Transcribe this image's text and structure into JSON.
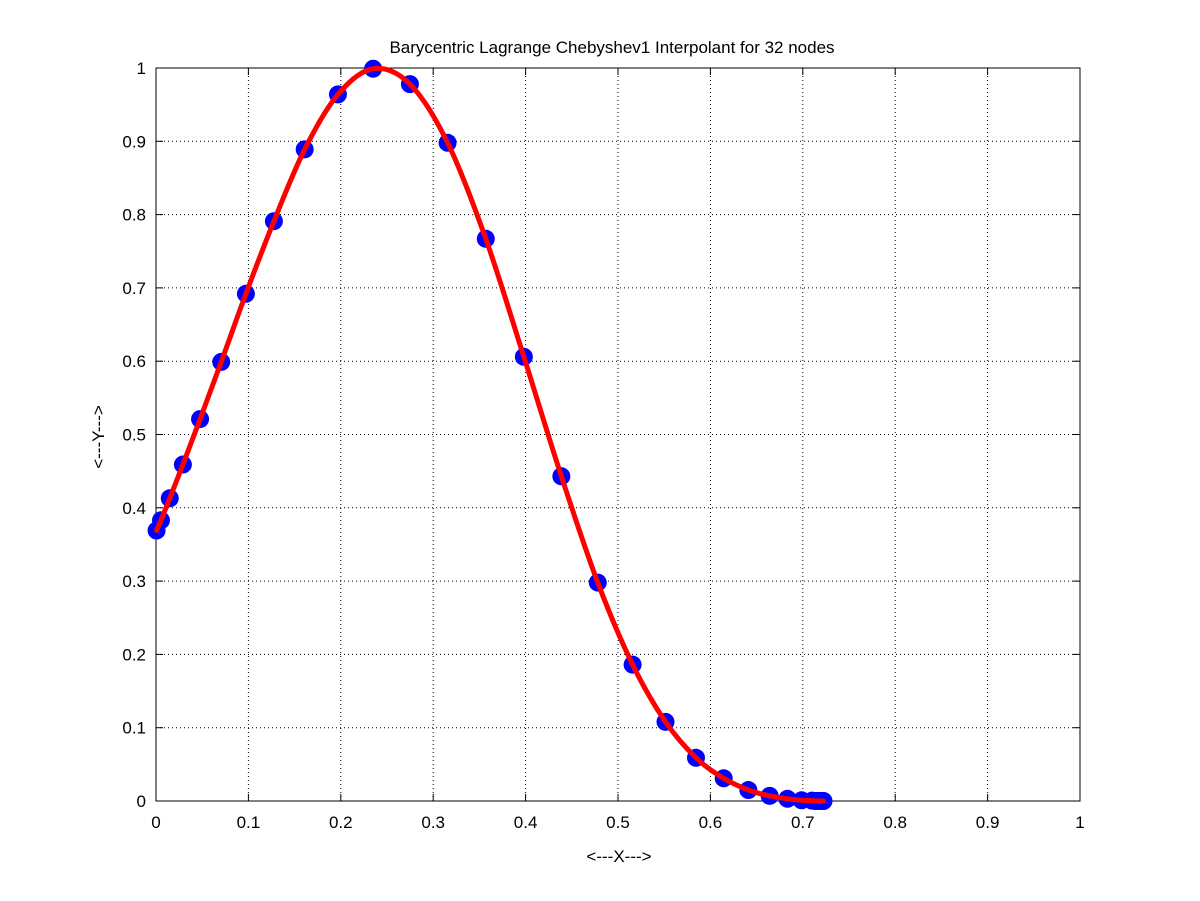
{
  "chart_data": {
    "type": "line",
    "title": "Barycentric Lagrange Chebyshev1 Interpolant for 32 nodes",
    "xlabel": "<---X--->",
    "ylabel": "<---Y--->",
    "xlim": [
      0,
      1
    ],
    "ylim": [
      0,
      1
    ],
    "xticks": [
      0,
      0.1,
      0.2,
      0.3,
      0.4,
      0.5,
      0.6,
      0.7,
      0.8,
      0.9,
      1
    ],
    "xtick_labels": [
      "0",
      "0.1",
      "0.2",
      "0.3",
      "0.4",
      "0.5",
      "0.6",
      "0.7",
      "0.8",
      "0.9",
      "1"
    ],
    "yticks": [
      0,
      0.1,
      0.2,
      0.3,
      0.4,
      0.5,
      0.6,
      0.7,
      0.8,
      0.9,
      1
    ],
    "ytick_labels": [
      "0",
      "0.1",
      "0.2",
      "0.3",
      "0.4",
      "0.5",
      "0.6",
      "0.7",
      "0.8",
      "0.9",
      "1"
    ],
    "grid": true,
    "series": [
      {
        "kind": "scatter",
        "color": "#0000ff",
        "x": [
          0.0006,
          0.0054,
          0.0149,
          0.0291,
          0.0477,
          0.0706,
          0.0973,
          0.1276,
          0.1609,
          0.1969,
          0.235,
          0.2748,
          0.3156,
          0.3569,
          0.3981,
          0.4387,
          0.4781,
          0.5158,
          0.5514,
          0.5844,
          0.6144,
          0.6411,
          0.6641,
          0.6834,
          0.6987,
          0.71,
          0.7175,
          0.7215,
          0.7224,
          0.721,
          0.7179,
          0.7136
        ],
        "y": [
          0.369,
          0.383,
          0.413,
          0.459,
          0.521,
          0.599,
          0.692,
          0.791,
          0.889,
          0.964,
          0.999,
          0.978,
          0.898,
          0.767,
          0.606,
          0.443,
          0.298,
          0.186,
          0.108,
          0.059,
          0.031,
          0.015,
          0.007,
          0.003,
          0.001,
          0.0005,
          0.0002,
          0.0001,
          0.0,
          0.0,
          0.0,
          0.0
        ]
      },
      {
        "kind": "line",
        "color": "#ff0000"
      }
    ]
  }
}
